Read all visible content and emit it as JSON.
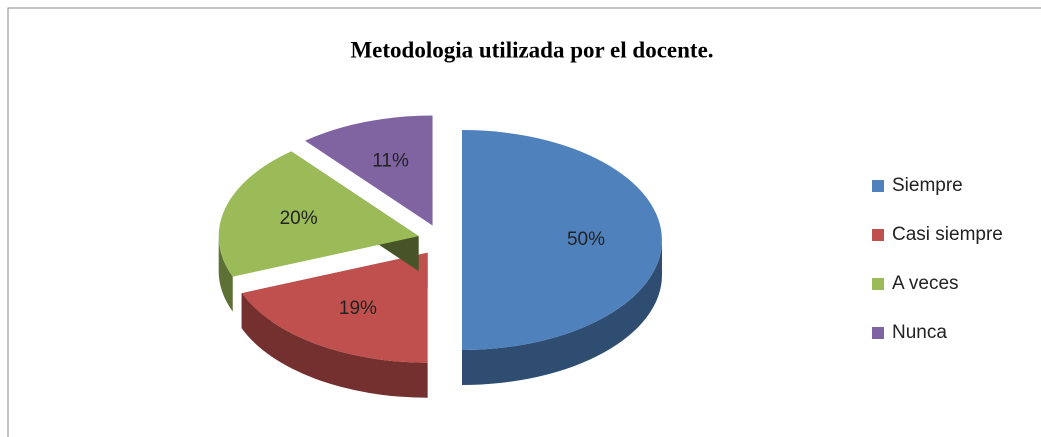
{
  "chart_data": {
    "type": "pie",
    "title": "Metodologia utilizada por el docente.",
    "categories": [
      "Siempre",
      "Casi siempre",
      "A veces",
      "Nunca"
    ],
    "values": [
      50,
      19,
      20,
      11
    ],
    "value_labels": [
      "50%",
      "19%",
      "20%",
      "11%"
    ],
    "colors": [
      "#4f81bd",
      "#c0504d",
      "#9bbb59",
      "#8064a2"
    ],
    "legend": "right"
  }
}
